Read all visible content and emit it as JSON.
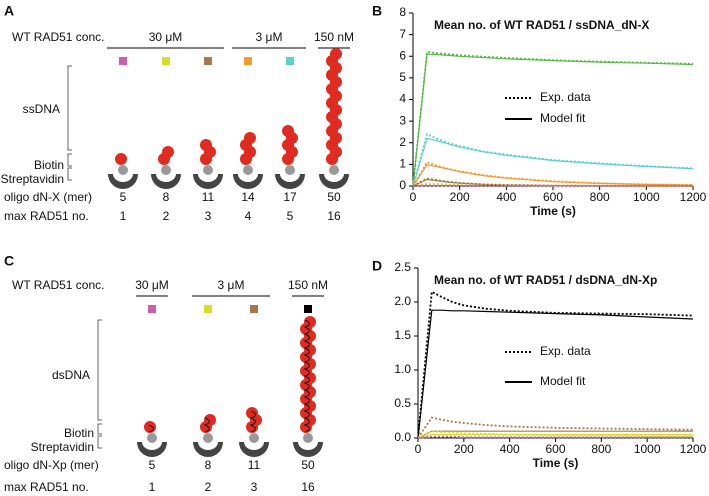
{
  "panel_a": {
    "label": "A",
    "conc_label": "WT RAD51 conc.",
    "groups": [
      {
        "label": "30 μM",
        "colors": [
          "#c85fb0",
          "#d8dd2a",
          "#a8784a"
        ]
      },
      {
        "label": "3 μM",
        "colors": [
          "#f39a2e",
          "#5ccfd3"
        ]
      },
      {
        "label": "150 nM",
        "colors": [
          "#5db84a"
        ]
      }
    ],
    "dna_label": "ssDNA",
    "biotin_label": "Biotin",
    "streptavidin_label": "Streptavidin",
    "oligo": {
      "label": "oligo dN-X (mer)",
      "values": [
        5,
        8,
        11,
        14,
        17,
        50
      ]
    },
    "max_no": {
      "label": "max RAD51 no.",
      "values": [
        1,
        2,
        3,
        4,
        5,
        16
      ]
    }
  },
  "panel_c": {
    "label": "C",
    "conc_label": "WT RAD51 conc.",
    "groups": [
      {
        "label": "30 μM",
        "colors": [
          "#c85fb0"
        ]
      },
      {
        "label": "3 μM",
        "colors": [
          "#d8dd2a",
          "#a8784a"
        ]
      },
      {
        "label": "150 nM",
        "colors": [
          "#000000"
        ]
      }
    ],
    "dna_label": "dsDNA",
    "biotin_label": "Biotin",
    "streptavidin_label": "Streptavidin",
    "oligo": {
      "label": "oligo dN-Xp (mer)",
      "values": [
        5,
        8,
        11,
        50
      ]
    },
    "max_no": {
      "label": "max RAD51 no.",
      "values": [
        1,
        2,
        3,
        16
      ]
    }
  },
  "chart_data": [
    {
      "type": "line",
      "panel_label": "B",
      "title": "Mean no. of WT RAD51 / ssDNA_dN-X",
      "x_label": "Time (s)",
      "x": [
        0,
        60,
        100,
        150,
        200,
        300,
        400,
        600,
        800,
        1000,
        1200
      ],
      "xlim": [
        0,
        1200
      ],
      "xticks": [
        0,
        200,
        400,
        600,
        800,
        1000,
        1200
      ],
      "ylim": [
        0,
        8
      ],
      "yticks": [
        0,
        1,
        2,
        3,
        4,
        5,
        6,
        7,
        8
      ],
      "legend": [
        {
          "label": "Exp. data",
          "dash": "dotted"
        },
        {
          "label": "Model fit",
          "dash": "solid"
        }
      ],
      "series": [
        {
          "color": "#5db84a",
          "dash": "dotted",
          "values": [
            0,
            6.2,
            6.15,
            6.1,
            6.05,
            5.98,
            5.92,
            5.82,
            5.75,
            5.7,
            5.65
          ]
        },
        {
          "color": "#5db84a",
          "dash": "solid",
          "values": [
            0,
            6.1,
            6.08,
            6.04,
            6.0,
            5.94,
            5.88,
            5.8,
            5.73,
            5.68,
            5.62
          ]
        },
        {
          "color": "#5ccfd3",
          "dash": "dotted",
          "values": [
            0,
            2.4,
            2.2,
            2.0,
            1.85,
            1.6,
            1.45,
            1.2,
            1.05,
            0.92,
            0.82
          ]
        },
        {
          "color": "#5ccfd3",
          "dash": "solid",
          "values": [
            0,
            2.2,
            2.1,
            1.95,
            1.8,
            1.58,
            1.42,
            1.18,
            1.02,
            0.9,
            0.8
          ]
        },
        {
          "color": "#f39a2e",
          "dash": "dotted",
          "values": [
            0,
            1.1,
            0.95,
            0.8,
            0.68,
            0.5,
            0.38,
            0.22,
            0.13,
            0.08,
            0.05
          ]
        },
        {
          "color": "#f39a2e",
          "dash": "solid",
          "values": [
            0,
            0.98,
            0.9,
            0.78,
            0.66,
            0.48,
            0.36,
            0.2,
            0.12,
            0.07,
            0.04
          ]
        },
        {
          "color": "#a8784a",
          "dash": "dotted",
          "values": [
            0,
            0.35,
            0.28,
            0.2,
            0.15,
            0.08,
            0.05,
            0.02,
            0.01,
            0.01,
            0.01
          ]
        },
        {
          "color": "#a8784a",
          "dash": "solid",
          "values": [
            0,
            0.3,
            0.25,
            0.18,
            0.13,
            0.07,
            0.04,
            0.02,
            0.01,
            0.01,
            0.01
          ]
        },
        {
          "color": "#d8dd2a",
          "dash": "dotted",
          "values": [
            0,
            0.12,
            0.1,
            0.07,
            0.05,
            0.03,
            0.02,
            0.01,
            0,
            0,
            0
          ]
        },
        {
          "color": "#c85fb0",
          "dash": "dotted",
          "values": [
            0,
            0.03,
            0.02,
            0.02,
            0.01,
            0.01,
            0,
            0,
            0,
            0,
            0
          ]
        }
      ]
    },
    {
      "type": "line",
      "panel_label": "D",
      "title": "Mean no. of WT RAD51 / dsDNA_dN-Xp",
      "x_label": "Time (s)",
      "x": [
        0,
        60,
        100,
        150,
        200,
        300,
        400,
        600,
        800,
        1000,
        1200
      ],
      "xlim": [
        0,
        1200
      ],
      "xticks": [
        0,
        200,
        400,
        600,
        800,
        1000,
        1200
      ],
      "ylim": [
        0,
        2.5
      ],
      "yticks": [
        {
          "value": 0,
          "label": "0.0"
        },
        0.5,
        {
          "value": 1,
          "label": "1.0"
        },
        1.5,
        {
          "value": 2,
          "label": "2.0"
        },
        2.5
      ],
      "legend": [
        {
          "label": "Exp. data",
          "dash": "dotted"
        },
        {
          "label": "Model fit",
          "dash": "solid"
        }
      ],
      "series": [
        {
          "color": "#000000",
          "dash": "dotted",
          "values": [
            0,
            2.15,
            2.08,
            2.0,
            1.95,
            1.9,
            1.87,
            1.84,
            1.83,
            1.82,
            1.8
          ]
        },
        {
          "color": "#000000",
          "dash": "solid",
          "values": [
            0,
            1.88,
            1.88,
            1.87,
            1.87,
            1.86,
            1.85,
            1.83,
            1.81,
            1.78,
            1.75
          ]
        },
        {
          "color": "#a8784a",
          "dash": "dotted",
          "values": [
            0,
            0.3,
            0.27,
            0.24,
            0.22,
            0.19,
            0.17,
            0.15,
            0.14,
            0.13,
            0.12
          ]
        },
        {
          "color": "#a8784a",
          "dash": "solid",
          "values": [
            0,
            0.1,
            0.1,
            0.1,
            0.1,
            0.1,
            0.1,
            0.1,
            0.1,
            0.1,
            0.1
          ]
        },
        {
          "color": "#d8dd2a",
          "dash": "dotted",
          "values": [
            0,
            0.1,
            0.09,
            0.08,
            0.07,
            0.06,
            0.05,
            0.04,
            0.04,
            0.03,
            0.03
          ]
        },
        {
          "color": "#d8dd2a",
          "dash": "solid",
          "values": [
            0,
            0.05,
            0.05,
            0.05,
            0.05,
            0.05,
            0.05,
            0.05,
            0.05,
            0.05,
            0.05
          ]
        },
        {
          "color": "#c85fb0",
          "dash": "dotted",
          "values": [
            0,
            0.02,
            0.02,
            0.02,
            0.01,
            0.01,
            0.01,
            0.01,
            0.01,
            0.01,
            0.01
          ]
        }
      ]
    }
  ]
}
